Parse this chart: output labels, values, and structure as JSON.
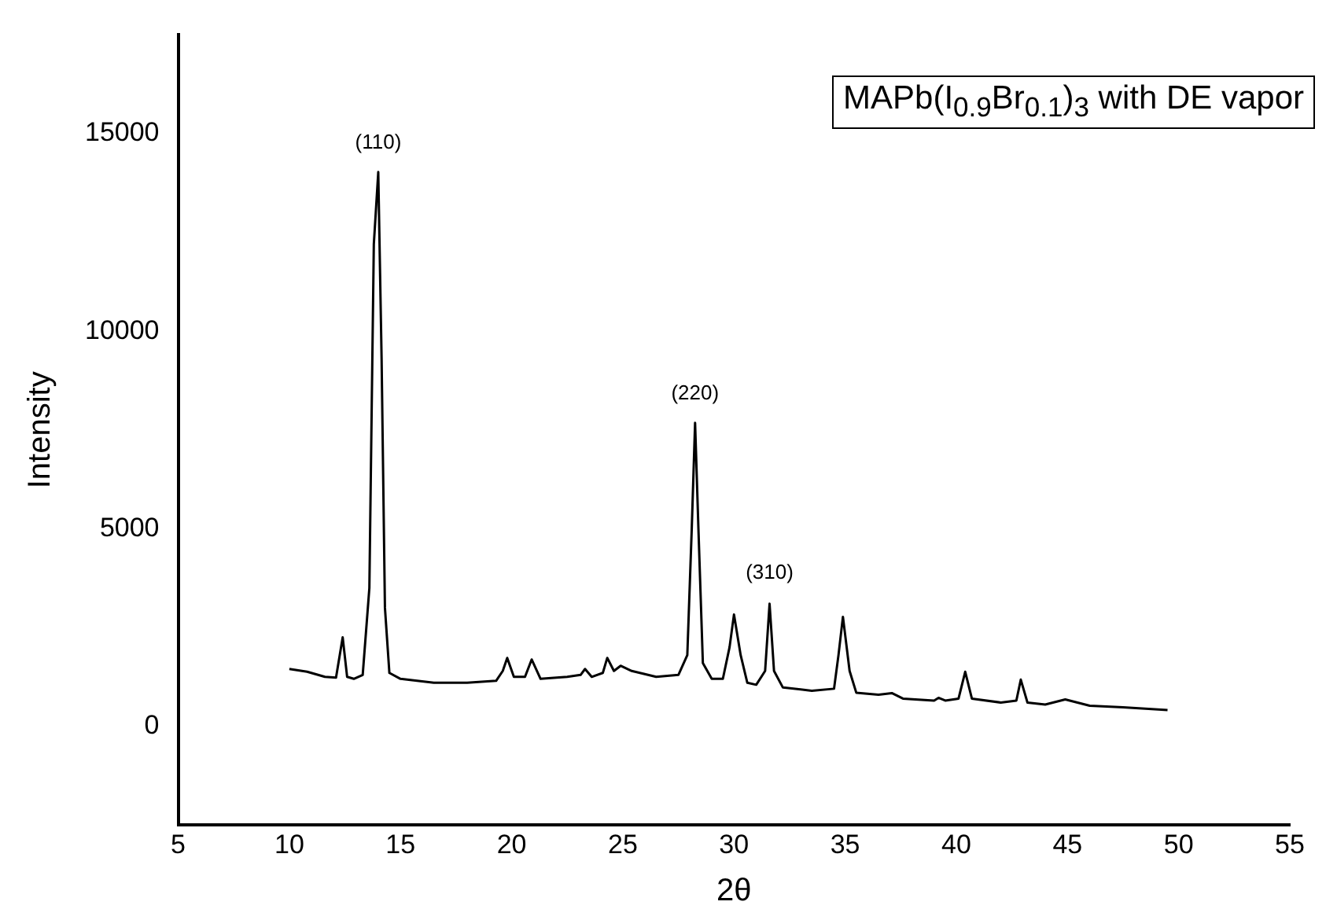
{
  "chart_data": {
    "type": "line",
    "title": "MAPb(I$_{0.9}$Br$_{0.1}$)$_{3}$ with DE vapor",
    "xlabel": "2θ",
    "ylabel": "Intensity",
    "xlim": [
      5,
      55
    ],
    "xticks": [
      5,
      10,
      15,
      20,
      25,
      30,
      35,
      40,
      45,
      50,
      55
    ],
    "ylim": [
      -2500,
      17500
    ],
    "yticks": [
      0,
      5000,
      10000,
      15000
    ],
    "grid": false,
    "legend": false,
    "marker": "none",
    "line_style": "solid",
    "annotations": [
      {
        "text": "(110)",
        "x": 14.0,
        "y": 14030
      },
      {
        "text": "(220)",
        "x": 28.25,
        "y": 7680
      },
      {
        "text": "(310)",
        "x": 31.6,
        "y": 3150
      }
    ],
    "series": [
      {
        "color": "#000000",
        "x": [
          10.0,
          10.8,
          11.6,
          12.1,
          12.4,
          12.6,
          12.9,
          13.3,
          13.6,
          13.8,
          14.0,
          14.15,
          14.3,
          14.5,
          15.0,
          16.5,
          18.0,
          19.3,
          19.6,
          19.8,
          20.1,
          20.6,
          20.9,
          21.3,
          22.5,
          23.1,
          23.3,
          23.6,
          24.1,
          24.3,
          24.6,
          24.9,
          25.4,
          26.5,
          27.5,
          27.9,
          28.1,
          28.25,
          28.4,
          28.6,
          29.0,
          29.5,
          29.8,
          30.0,
          30.3,
          30.6,
          31.0,
          31.4,
          31.6,
          31.8,
          32.2,
          33.5,
          34.5,
          34.7,
          34.9,
          35.2,
          35.5,
          36.5,
          37.1,
          37.6,
          39.0,
          39.2,
          39.5,
          40.1,
          40.4,
          40.7,
          42.0,
          42.7,
          42.9,
          43.2,
          44.0,
          44.9,
          46.0,
          47.5,
          49.5
        ],
        "values": [
          1450,
          1380,
          1250,
          1230,
          2250,
          1250,
          1200,
          1300,
          3500,
          12200,
          14030,
          9300,
          3000,
          1350,
          1200,
          1100,
          1100,
          1150,
          1400,
          1730,
          1250,
          1250,
          1690,
          1200,
          1250,
          1300,
          1450,
          1250,
          1350,
          1730,
          1400,
          1530,
          1400,
          1250,
          1300,
          1800,
          5000,
          7680,
          5000,
          1600,
          1200,
          1200,
          2000,
          2830,
          1800,
          1100,
          1050,
          1400,
          3100,
          1400,
          980,
          900,
          950,
          1800,
          2770,
          1400,
          850,
          800,
          840,
          700,
          650,
          720,
          650,
          700,
          1380,
          700,
          600,
          650,
          1180,
          600,
          550,
          680,
          520,
          480,
          410
        ]
      }
    ]
  }
}
